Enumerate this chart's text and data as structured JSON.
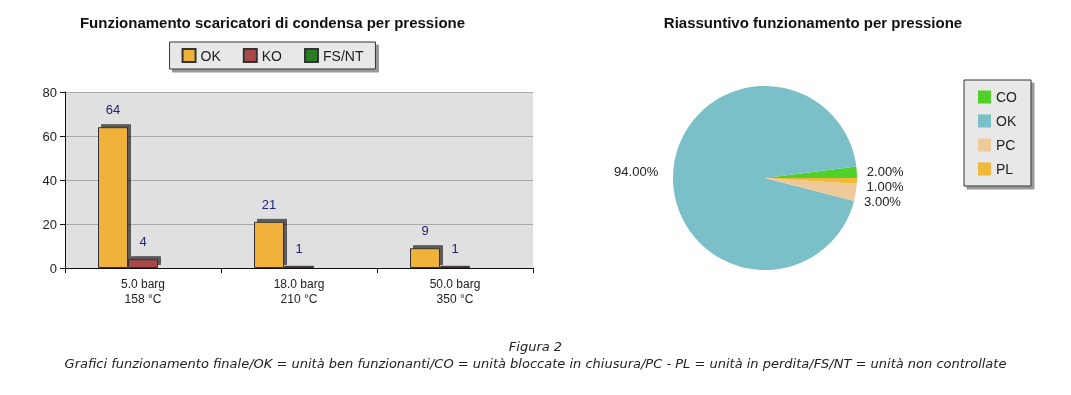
{
  "chart_data": [
    {
      "type": "bar",
      "title": "Funzionamento scaricatori di condensa per pressione",
      "categories": [
        "5.0 barg\n158 °C",
        "18.0 barg\n210 °C",
        "50.0 barg\n350 °C"
      ],
      "series": [
        {
          "name": "OK",
          "color": "#f0b23a",
          "values": [
            64,
            21,
            9
          ]
        },
        {
          "name": "KO",
          "color": "#a84848",
          "values": [
            4,
            1,
            1
          ]
        },
        {
          "name": "FS/NT",
          "color": "#2a7a2a",
          "values": [
            null,
            null,
            null
          ]
        }
      ],
      "ylim": [
        0,
        80
      ],
      "yticks": [
        0,
        20,
        40,
        60,
        80
      ],
      "grid": "y",
      "legend": "top",
      "data_labels": true,
      "annotations": [
        "Figura 2",
        "Grafici funzionamento finale/OK = unità ben funzionanti/CO = unità bloccate in chiusura/PC - PL = unità in perdita/FS/NT = unità non controllate"
      ]
    },
    {
      "type": "pie",
      "title": "Riassuntivo funzionamento per pressione",
      "categories": [
        "CO",
        "OK",
        "PC",
        "PL"
      ],
      "values": [
        2,
        94,
        3,
        1
      ],
      "colors": [
        "#4fd12a",
        "#7bbfc8",
        "#eec99a",
        "#f0b93a"
      ],
      "value_labels": [
        "2.00%",
        "94.00%",
        "3.00%",
        "1.00%"
      ],
      "legend": "right"
    }
  ]
}
